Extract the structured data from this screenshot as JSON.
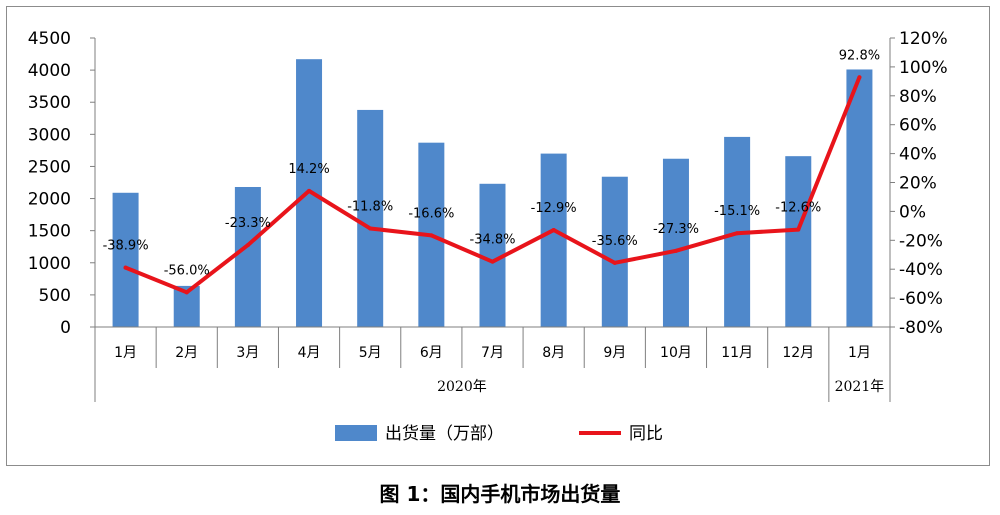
{
  "caption": "图 1：国内手机市场出货量",
  "colors": {
    "bar": "#4f88cb",
    "line": "#e8141b",
    "axis": "#7f7f7f"
  },
  "chart_data": {
    "type": "bar+line",
    "categories": [
      "1月",
      "2月",
      "3月",
      "4月",
      "5月",
      "6月",
      "7月",
      "8月",
      "9月",
      "10月",
      "11月",
      "12月",
      "1月"
    ],
    "year_groups": [
      {
        "label": "2020年",
        "start": 0,
        "end": 11
      },
      {
        "label": "2021年",
        "start": 12,
        "end": 12
      }
    ],
    "series": [
      {
        "name": "出货量（万部）",
        "type": "bar",
        "axis": "left",
        "values": [
          2090,
          640,
          2180,
          4170,
          3380,
          2870,
          2230,
          2700,
          2340,
          2620,
          2960,
          2660,
          4010
        ]
      },
      {
        "name": "同比",
        "type": "line",
        "axis": "right",
        "values": [
          -38.9,
          -56.0,
          -23.3,
          14.2,
          -11.8,
          -16.6,
          -34.8,
          -12.9,
          -35.6,
          -27.3,
          -15.1,
          -12.6,
          92.8
        ],
        "labels": [
          "-38.9%",
          "-56.0%",
          "-23.3%",
          "14.2%",
          "-11.8%",
          "-16.6%",
          "-34.8%",
          "-12.9%",
          "-35.6%",
          "-27.3%",
          "-15.1%",
          "-12.6%",
          "92.8%"
        ]
      }
    ],
    "left_axis": {
      "min": 0,
      "max": 4500,
      "ticks": [
        "0",
        "500",
        "1000",
        "1500",
        "2000",
        "2500",
        "3000",
        "3500",
        "4000",
        "4500"
      ]
    },
    "right_axis": {
      "min": -80,
      "max": 120,
      "ticks": [
        "-80%",
        "-60%",
        "-40%",
        "-20%",
        "0%",
        "20%",
        "40%",
        "60%",
        "80%",
        "100%",
        "120%"
      ]
    },
    "legend": {
      "position": "bottom",
      "items": [
        "出货量（万部）",
        "同比"
      ]
    },
    "grid": false
  }
}
